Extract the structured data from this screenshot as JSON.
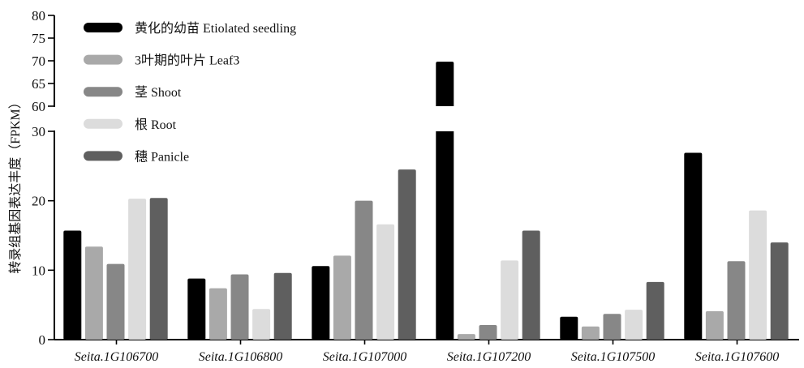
{
  "chart_data": {
    "type": "bar",
    "ylabel": "转录组基因表达丰度（FPKM）",
    "axis_break": {
      "lower": 30,
      "upper": 60
    },
    "ylim": [
      0,
      80
    ],
    "yticks": [
      0,
      10,
      20,
      30,
      60,
      65,
      70,
      75,
      80
    ],
    "grid": false,
    "legend_position": "top-left",
    "categories": [
      "Seita.1G106700",
      "Seita.1G106800",
      "Seita.1G107000",
      "Seita.1G107200",
      "Seita.1G107500",
      "Seita.1G107600"
    ],
    "series": [
      {
        "name": "黄化的幼苗 Etiolated seedling",
        "color": "#000000",
        "values": [
          15.7,
          8.8,
          10.6,
          69.8,
          3.3,
          26.9
        ]
      },
      {
        "name": "3叶期的叶片 Leaf3",
        "color": "#a9a9a9",
        "values": [
          13.4,
          7.4,
          12.1,
          0.8,
          1.9,
          4.1
        ]
      },
      {
        "name": "茎 Shoot",
        "color": "#878787",
        "values": [
          10.9,
          9.4,
          20.0,
          2.1,
          3.7,
          11.3
        ]
      },
      {
        "name": "根 Root",
        "color": "#dcdcdc",
        "values": [
          20.3,
          4.4,
          16.6,
          11.4,
          4.3,
          18.6
        ]
      },
      {
        "name": "穗 Panicle",
        "color": "#5f5f5f",
        "values": [
          20.4,
          9.6,
          24.5,
          15.7,
          8.3,
          14.0
        ]
      }
    ]
  }
}
